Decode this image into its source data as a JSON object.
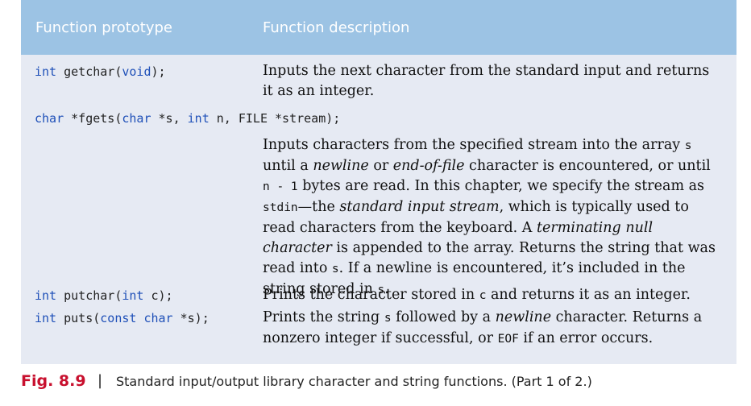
{
  "table": {
    "headers": [
      "Function prototype",
      "Function description"
    ],
    "rows": [
      {
        "proto": {
          "kw1": "int",
          "rest1": " getchar(",
          "kw2": "void",
          "rest2": ");"
        },
        "desc": "Inputs the next character from the standard input and returns it as an integer."
      },
      {
        "proto": {
          "kw1": "char",
          "rest1": " *fgets(",
          "kw2": "char",
          "rest2": " *s, ",
          "kw3": "int",
          "rest3": " n, FILE *stream);"
        },
        "desc_parts": [
          "Inputs characters from the specified stream into the array ",
          "s",
          " until a ",
          "newline",
          " or ",
          "end-of-file",
          " character is encountered, or until ",
          "n - 1",
          " bytes are read. In this chapter, we specify the stream as ",
          "stdin",
          "—the ",
          "standard input stream",
          ", which is typically used to read characters from the keyboard. A ",
          "terminating null character",
          " is appended to the array. Returns the string that was read into ",
          "s",
          ". If a newline is encountered, it’s included in the string stored in ",
          "s",
          "."
        ]
      },
      {
        "proto": {
          "kw1": "int",
          "rest1": " putchar(",
          "kw2": "int",
          "rest2": " c);"
        },
        "desc_parts": [
          "Prints the character stored in ",
          "c",
          " and returns it as an integer."
        ]
      },
      {
        "proto": {
          "kw1": "int",
          "rest1": " puts(",
          "kw2": "const",
          "sp": " ",
          "kw3": "char",
          "rest3": " *s);"
        },
        "desc_parts": [
          "Prints the string ",
          "s",
          " followed by a ",
          "newline",
          " character. Returns a nonzero integer if successful, or ",
          "EOF",
          " if an error occurs."
        ]
      }
    ]
  },
  "caption": {
    "label": "Fig. 8.9",
    "separator": "|",
    "text": "Standard input/output library character and string functions. (Part 1 of 2.)"
  }
}
